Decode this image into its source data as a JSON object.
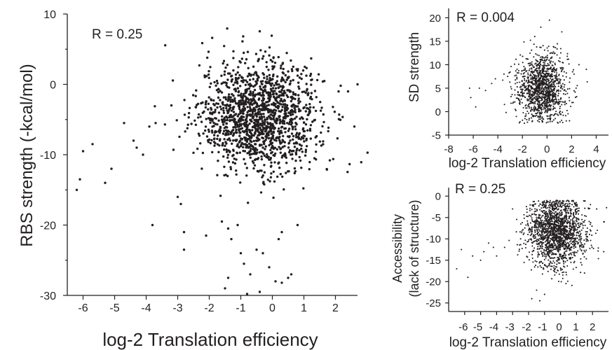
{
  "chart_data": [
    {
      "type": "scatter",
      "title": "",
      "annotation": "R = 0.25",
      "xlabel": "log-2 Translation efficiency",
      "ylabel": "RBS strength (-kcal/mol)",
      "xlim": [
        -6.5,
        2.7
      ],
      "ylim": [
        -30,
        10
      ],
      "xticks": [
        -6,
        -5,
        -4,
        -3,
        -2,
        -1,
        0,
        1,
        2
      ],
      "xtick_labels": [
        "-6",
        "-5",
        "-4",
        "-3",
        "-2",
        "-1",
        "0",
        "1",
        "2"
      ],
      "yticks": [
        10,
        0,
        -10,
        -20,
        -30
      ],
      "ytick_labels": [
        "10",
        "0",
        "-10",
        "-20",
        "-30"
      ],
      "grid": false,
      "legend": "none",
      "point_color": "#231f20",
      "dense_cloud": {
        "n": 1500,
        "x_mean": -0.4,
        "x_sd": 0.95,
        "y_mean": -4.5,
        "y_sd": 3.8
      },
      "points": [
        [
          -6.2,
          -15
        ],
        [
          -6.1,
          -13.5
        ],
        [
          -6.0,
          -9.5
        ],
        [
          -5.7,
          -8.5
        ],
        [
          -5.3,
          -14
        ],
        [
          -5.1,
          -12
        ],
        [
          -4.7,
          -5.5
        ],
        [
          -4.4,
          -8
        ],
        [
          -4.3,
          -9
        ],
        [
          -4.1,
          -10
        ],
        [
          -3.9,
          -6
        ],
        [
          -3.7,
          -5.5
        ],
        [
          -3.8,
          -20
        ],
        [
          -3.2,
          -3
        ],
        [
          -3.0,
          -16
        ],
        [
          -2.9,
          -17
        ],
        [
          -2.8,
          -21
        ],
        [
          -2.8,
          -23.5
        ],
        [
          -2.1,
          -21.5
        ],
        [
          -1.6,
          -19.5
        ],
        [
          -1.4,
          -20.5
        ],
        [
          -1.3,
          -22
        ],
        [
          -1.1,
          -20
        ],
        [
          -1.0,
          -24
        ],
        [
          -0.9,
          -25.5
        ],
        [
          -0.7,
          -27
        ],
        [
          -1.5,
          -29
        ],
        [
          -1.4,
          -27.5
        ],
        [
          -0.8,
          -29.8
        ],
        [
          -0.4,
          -29.5
        ],
        [
          0.1,
          -28
        ],
        [
          0.3,
          -28.2
        ],
        [
          0.5,
          -27.5
        ],
        [
          0.6,
          -27
        ],
        [
          0.2,
          -22
        ],
        [
          0.3,
          -21
        ],
        [
          0.8,
          -20
        ],
        [
          -0.5,
          -23.5
        ],
        [
          -0.1,
          -26
        ],
        [
          -0.3,
          -24
        ],
        [
          2.1,
          -1
        ],
        [
          2.4,
          -1
        ],
        [
          2.6,
          -6
        ],
        [
          2.7,
          0
        ]
      ]
    },
    {
      "type": "scatter",
      "title": "",
      "annotation": "R = 0.004",
      "xlabel": "log-2 Translation efficiency",
      "ylabel": "SD strength",
      "xlim": [
        -8,
        5
      ],
      "ylim": [
        -5,
        22
      ],
      "xticks": [
        -8,
        -6,
        -4,
        -2,
        0,
        2,
        4
      ],
      "xtick_labels": [
        "-8",
        "-6",
        "-4",
        "-2",
        "0",
        "2",
        "4"
      ],
      "yticks": [
        20,
        15,
        10,
        5,
        0,
        -5
      ],
      "ytick_labels": [
        "20",
        "15",
        "10",
        "5",
        "0",
        "-5"
      ],
      "grid": false,
      "legend": "none",
      "point_color": "#231f20",
      "dense_cloud": {
        "n": 1300,
        "x_mean": -0.4,
        "x_sd": 1.0,
        "y_mean": 5,
        "y_sd": 3.5,
        "y_floor": -2.5
      },
      "points": [
        [
          -6.3,
          5
        ],
        [
          -6.2,
          3
        ],
        [
          -5.8,
          1
        ],
        [
          -5.5,
          5
        ],
        [
          -5.0,
          4.5
        ],
        [
          -4.5,
          6
        ],
        [
          -4.2,
          7
        ],
        [
          -3.5,
          8
        ],
        [
          -3.2,
          7.5
        ],
        [
          -1.0,
          16
        ],
        [
          -0.5,
          18
        ],
        [
          0.2,
          19.5
        ],
        [
          1.2,
          17
        ],
        [
          1.8,
          3
        ],
        [
          2.6,
          10
        ],
        [
          3.2,
          9
        ],
        [
          2.2,
          8
        ]
      ]
    },
    {
      "type": "scatter",
      "title": "",
      "annotation": "R = 0.25",
      "xlabel": "log-2 Translation efficiency",
      "ylabel": [
        "Accessibility",
        "(lack of structure)"
      ],
      "xlim": [
        -7,
        3
      ],
      "ylim": [
        -27,
        2
      ],
      "xticks": [
        -6,
        -5,
        -4,
        -3,
        -2,
        -1,
        0,
        1,
        2
      ],
      "xtick_labels": [
        "-6",
        "-5",
        "-4",
        "-3",
        "-2",
        "-1",
        "0",
        "1",
        "2"
      ],
      "yticks": [
        0,
        -5,
        -10,
        -15,
        -20,
        -25
      ],
      "ytick_labels": [
        "0",
        "-5",
        "-10",
        "-15",
        "-20",
        "-25"
      ],
      "grid": false,
      "legend": "none",
      "point_color": "#231f20",
      "dense_cloud": {
        "n": 1700,
        "x_mean": -0.2,
        "x_sd": 0.9,
        "y_mean": -8.5,
        "y_sd": 4.0,
        "y_ceiling": -1
      },
      "points": [
        [
          -6.5,
          -17
        ],
        [
          -6.2,
          -12.5
        ],
        [
          -5.8,
          -19
        ],
        [
          -5.5,
          -14
        ],
        [
          -5.0,
          -15
        ],
        [
          -4.8,
          -13
        ],
        [
          -4.5,
          -11
        ],
        [
          -4.2,
          -12
        ],
        [
          -4.0,
          -14
        ],
        [
          -3.5,
          -12
        ],
        [
          -3.0,
          -3
        ],
        [
          -2.5,
          -10
        ],
        [
          -1.8,
          -24
        ],
        [
          -1.5,
          -22
        ],
        [
          -1.3,
          -24.5
        ],
        [
          -1.0,
          -23
        ],
        [
          1.5,
          -18
        ],
        [
          2.3,
          -8
        ],
        [
          2.7,
          -13
        ]
      ]
    }
  ]
}
